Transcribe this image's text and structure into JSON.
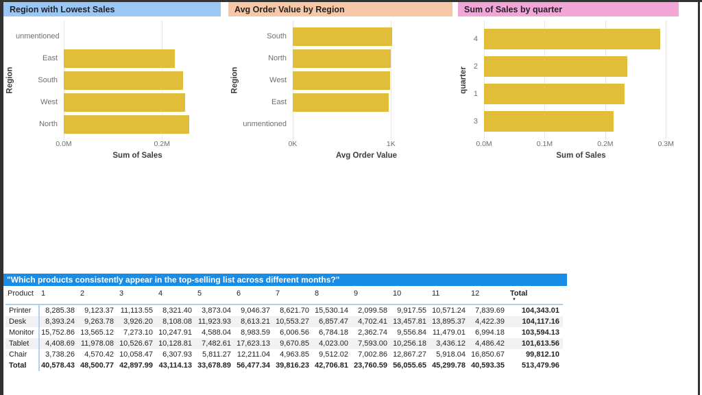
{
  "window": {
    "frame_color": "#323232",
    "background": "#ffffff"
  },
  "styles": {
    "bar_color": "#e0be3a",
    "grid_color": "#d2d2d2",
    "axis_text_color": "#6e6e6e",
    "table_header_line_color": "#a9cfec",
    "table_stripe_color": "#f2f2f2"
  },
  "chart_data": [
    {
      "type": "bar",
      "orientation": "horizontal",
      "title": "Region with Lowest Sales",
      "title_bg": "#9ac7f6",
      "xlabel": "Sum of Sales",
      "ylabel": "Region",
      "categories": [
        "unmentioned",
        "East",
        "South",
        "West",
        "North"
      ],
      "values": [
        0,
        226000,
        243000,
        247000,
        255000
      ],
      "xlim": [
        0,
        300000
      ],
      "grid": true,
      "legend": "none",
      "ticks": [
        {
          "value": 0,
          "label": "0.0M"
        },
        {
          "value": 200000,
          "label": "0.2M"
        }
      ]
    },
    {
      "type": "bar",
      "orientation": "horizontal",
      "title": "Avg Order Value by Region",
      "title_bg": "#f7c8a8",
      "xlabel": "Avg Order Value",
      "ylabel": "Region",
      "categories": [
        "South",
        "North",
        "West",
        "East",
        "unmentioned"
      ],
      "values": [
        1010,
        995,
        990,
        975,
        0
      ],
      "xlim": [
        0,
        1500
      ],
      "grid": true,
      "legend": "none",
      "ticks": [
        {
          "value": 0,
          "label": "0K"
        },
        {
          "value": 1000,
          "label": "1K"
        }
      ]
    },
    {
      "type": "bar",
      "orientation": "horizontal",
      "title": "Sum of Sales by quarter",
      "title_bg": "#f2a6d7",
      "xlabel": "Sum of Sales",
      "ylabel": "quarter",
      "categories": [
        "4",
        "2",
        "1",
        "3"
      ],
      "values": [
        291000,
        236000,
        232000,
        214000
      ],
      "xlim": [
        0,
        320000
      ],
      "grid": true,
      "legend": "none",
      "ticks": [
        {
          "value": 0,
          "label": "0.0M"
        },
        {
          "value": 100000,
          "label": "0.1M"
        },
        {
          "value": 200000,
          "label": "0.2M"
        },
        {
          "value": 300000,
          "label": "0.3M"
        }
      ]
    },
    {
      "type": "table",
      "title": "\"Which products consistently appear in the top-selling list across different months?\"",
      "title_bg": "#198de6",
      "columns": [
        "Product",
        "1",
        "2",
        "3",
        "4",
        "5",
        "6",
        "7",
        "8",
        "9",
        "10",
        "11",
        "12",
        "Total"
      ],
      "sort": {
        "column": "Total",
        "direction": "desc"
      },
      "rows": [
        {
          "product": "Printer",
          "values": [
            "8,285.38",
            "9,123.37",
            "11,113.55",
            "8,321.40",
            "3,873.04",
            "9,046.37",
            "8,621.70",
            "15,530.14",
            "2,099.58",
            "9,917.55",
            "10,571.24",
            "7,839.69"
          ],
          "total": "104,343.01"
        },
        {
          "product": "Desk",
          "values": [
            "8,393.24",
            "9,263.78",
            "3,926.20",
            "8,108.08",
            "11,923.93",
            "8,613.21",
            "10,553.27",
            "6,857.47",
            "4,702.41",
            "13,457.81",
            "13,895.37",
            "4,422.39"
          ],
          "total": "104,117.16"
        },
        {
          "product": "Monitor",
          "values": [
            "15,752.86",
            "13,565.12",
            "7,273.10",
            "10,247.91",
            "4,588.04",
            "8,983.59",
            "6,006.56",
            "6,784.18",
            "2,362.74",
            "9,556.84",
            "11,479.01",
            "6,994.18"
          ],
          "total": "103,594.13"
        },
        {
          "product": "Tablet",
          "values": [
            "4,408.69",
            "11,978.08",
            "10,526.67",
            "10,128.81",
            "7,482.61",
            "17,623.13",
            "9,670.85",
            "4,023.00",
            "7,593.00",
            "10,256.18",
            "3,436.12",
            "4,486.42"
          ],
          "total": "101,613.56"
        },
        {
          "product": "Chair",
          "values": [
            "3,738.26",
            "4,570.42",
            "10,058.47",
            "6,307.93",
            "5,811.27",
            "12,211.04",
            "4,963.85",
            "9,512.02",
            "7,002.86",
            "12,867.27",
            "5,918.04",
            "16,850.67"
          ],
          "total": "99,812.10"
        }
      ],
      "total_row": {
        "product": "Total",
        "values": [
          "40,578.43",
          "48,500.77",
          "42,897.99",
          "43,114.13",
          "33,678.89",
          "56,477.34",
          "39,816.23",
          "42,706.81",
          "23,760.59",
          "56,055.65",
          "45,299.78",
          "40,593.35"
        ],
        "total": "513,479.96"
      }
    }
  ]
}
